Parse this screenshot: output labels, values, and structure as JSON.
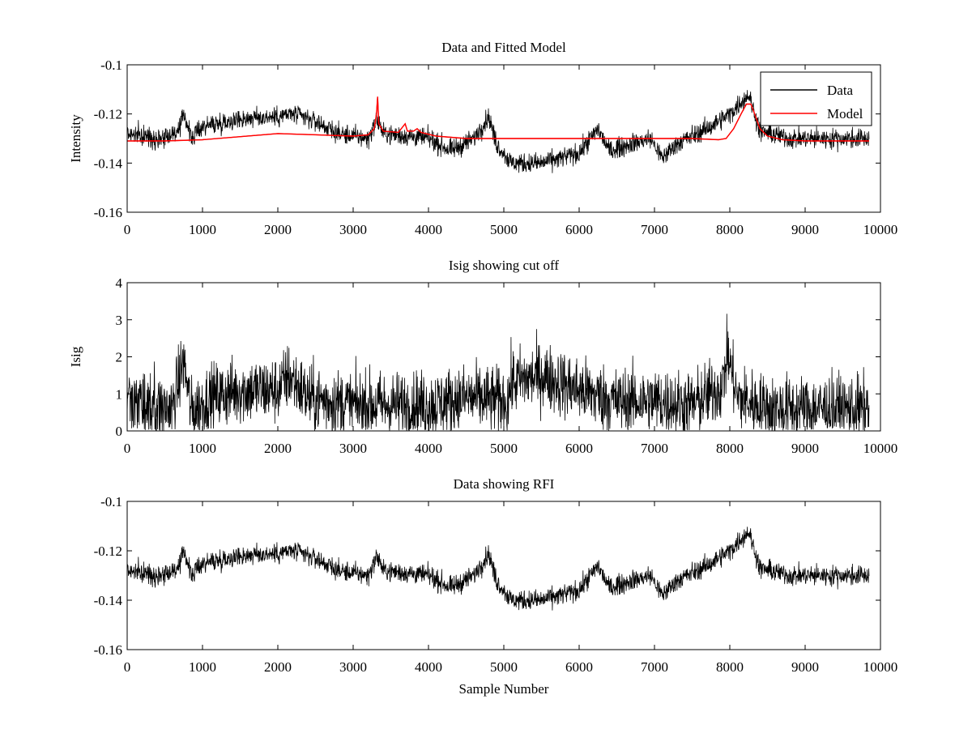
{
  "chart_data": [
    {
      "type": "line",
      "title": "Data and Fitted Model",
      "xlabel": "",
      "ylabel": "Intensity",
      "xlim": [
        0,
        10000
      ],
      "ylim": [
        -0.16,
        -0.1
      ],
      "xticks": [
        0,
        1000,
        2000,
        3000,
        4000,
        5000,
        6000,
        7000,
        8000,
        9000,
        10000
      ],
      "yticks": [
        -0.16,
        -0.14,
        -0.12,
        -0.1
      ],
      "xtick_labels": [
        "0",
        "1000",
        "2000",
        "3000",
        "4000",
        "5000",
        "6000",
        "7000",
        "8000",
        "9000",
        "10000"
      ],
      "ytick_labels": [
        "-0.16",
        "-0.14",
        "-0.12",
        "-0.1"
      ],
      "legend": {
        "placement": "top-right",
        "entries": [
          {
            "name": "Data",
            "color": "#000000"
          },
          {
            "name": "Model",
            "color": "#ff0000"
          }
        ]
      },
      "series": [
        {
          "name": "Data",
          "color": "#000000",
          "noise_amplitude": 0.004,
          "baseline": [
            [
              0,
              -0.128
            ],
            [
              400,
              -0.13
            ],
            [
              700,
              -0.127
            ],
            [
              750,
              -0.119
            ],
            [
              850,
              -0.13
            ],
            [
              1000,
              -0.125
            ],
            [
              1500,
              -0.122
            ],
            [
              2000,
              -0.121
            ],
            [
              2200,
              -0.12
            ],
            [
              2500,
              -0.123
            ],
            [
              2800,
              -0.128
            ],
            [
              3200,
              -0.13
            ],
            [
              3320,
              -0.122
            ],
            [
              3400,
              -0.128
            ],
            [
              4000,
              -0.13
            ],
            [
              4300,
              -0.135
            ],
            [
              4600,
              -0.13
            ],
            [
              4800,
              -0.121
            ],
            [
              4900,
              -0.132
            ],
            [
              5100,
              -0.14
            ],
            [
              5500,
              -0.14
            ],
            [
              6000,
              -0.136
            ],
            [
              6250,
              -0.126
            ],
            [
              6400,
              -0.135
            ],
            [
              6700,
              -0.132
            ],
            [
              6950,
              -0.13
            ],
            [
              7100,
              -0.138
            ],
            [
              7300,
              -0.132
            ],
            [
              7700,
              -0.126
            ],
            [
              8000,
              -0.12
            ],
            [
              8250,
              -0.112
            ],
            [
              8400,
              -0.127
            ],
            [
              8800,
              -0.13
            ],
            [
              9500,
              -0.13
            ],
            [
              9850,
              -0.13
            ]
          ]
        },
        {
          "name": "Model",
          "color": "#ff0000",
          "points": [
            [
              0,
              -0.131
            ],
            [
              500,
              -0.131
            ],
            [
              1000,
              -0.1305
            ],
            [
              2000,
              -0.128
            ],
            [
              2500,
              -0.1285
            ],
            [
              3000,
              -0.129
            ],
            [
              3200,
              -0.1285
            ],
            [
              3280,
              -0.126
            ],
            [
              3310,
              -0.12
            ],
            [
              3325,
              -0.113
            ],
            [
              3340,
              -0.124
            ],
            [
              3400,
              -0.127
            ],
            [
              3600,
              -0.1275
            ],
            [
              3690,
              -0.124
            ],
            [
              3720,
              -0.127
            ],
            [
              3800,
              -0.127
            ],
            [
              3850,
              -0.126
            ],
            [
              3900,
              -0.1275
            ],
            [
              4100,
              -0.129
            ],
            [
              4500,
              -0.13
            ],
            [
              6000,
              -0.13
            ],
            [
              7000,
              -0.13
            ],
            [
              7500,
              -0.13
            ],
            [
              7850,
              -0.1305
            ],
            [
              7950,
              -0.13
            ],
            [
              8050,
              -0.126
            ],
            [
              8150,
              -0.12
            ],
            [
              8220,
              -0.116
            ],
            [
              8280,
              -0.116
            ],
            [
              8330,
              -0.12
            ],
            [
              8400,
              -0.126
            ],
            [
              8500,
              -0.129
            ],
            [
              8700,
              -0.1305
            ],
            [
              9000,
              -0.131
            ],
            [
              9850,
              -0.131
            ]
          ]
        }
      ]
    },
    {
      "type": "line",
      "title": "Isig showing cut off",
      "xlabel": "",
      "ylabel": "Isig",
      "xlim": [
        0,
        10000
      ],
      "ylim": [
        0,
        4
      ],
      "xticks": [
        0,
        1000,
        2000,
        3000,
        4000,
        5000,
        6000,
        7000,
        8000,
        9000,
        10000
      ],
      "yticks": [
        0,
        1,
        2,
        3,
        4
      ],
      "xtick_labels": [
        "0",
        "1000",
        "2000",
        "3000",
        "4000",
        "5000",
        "6000",
        "7000",
        "8000",
        "9000",
        "10000"
      ],
      "ytick_labels": [
        "0",
        "1",
        "2",
        "3",
        "4"
      ],
      "series": [
        {
          "name": "Isig",
          "color": "#000000",
          "noise_amplitude": 0.9,
          "baseline": [
            [
              0,
              0.7
            ],
            [
              600,
              0.6
            ],
            [
              750,
              1.9
            ],
            [
              850,
              0.5
            ],
            [
              1100,
              0.9
            ],
            [
              1500,
              1.1
            ],
            [
              2000,
              1.1
            ],
            [
              2150,
              1.5
            ],
            [
              2400,
              0.9
            ],
            [
              3000,
              0.7
            ],
            [
              4000,
              0.7
            ],
            [
              4500,
              0.9
            ],
            [
              5050,
              0.8
            ],
            [
              5100,
              1.3
            ],
            [
              5500,
              1.5
            ],
            [
              6000,
              1.1
            ],
            [
              6500,
              0.8
            ],
            [
              7000,
              0.8
            ],
            [
              7500,
              0.7
            ],
            [
              7900,
              1.2
            ],
            [
              7970,
              2.1
            ],
            [
              8100,
              0.9
            ],
            [
              8500,
              0.6
            ],
            [
              9850,
              0.6
            ]
          ]
        }
      ]
    },
    {
      "type": "line",
      "title": "Data showing RFI",
      "xlabel": "Sample Number",
      "ylabel": "",
      "xlim": [
        0,
        10000
      ],
      "ylim": [
        -0.16,
        -0.1
      ],
      "xticks": [
        0,
        1000,
        2000,
        3000,
        4000,
        5000,
        6000,
        7000,
        8000,
        9000,
        10000
      ],
      "yticks": [
        -0.16,
        -0.14,
        -0.12,
        -0.1
      ],
      "xtick_labels": [
        "0",
        "1000",
        "2000",
        "3000",
        "4000",
        "5000",
        "6000",
        "7000",
        "8000",
        "9000",
        "10000"
      ],
      "ytick_labels": [
        "-0.16",
        "-0.14",
        "-0.12",
        "-0.1"
      ],
      "series": [
        {
          "name": "Data",
          "color": "#000000",
          "noise_amplitude": 0.004,
          "baseline": [
            [
              0,
              -0.128
            ],
            [
              400,
              -0.13
            ],
            [
              700,
              -0.127
            ],
            [
              750,
              -0.119
            ],
            [
              850,
              -0.13
            ],
            [
              1000,
              -0.125
            ],
            [
              1500,
              -0.122
            ],
            [
              2000,
              -0.121
            ],
            [
              2200,
              -0.12
            ],
            [
              2500,
              -0.123
            ],
            [
              2800,
              -0.128
            ],
            [
              3200,
              -0.13
            ],
            [
              3320,
              -0.122
            ],
            [
              3400,
              -0.128
            ],
            [
              4000,
              -0.13
            ],
            [
              4300,
              -0.135
            ],
            [
              4600,
              -0.13
            ],
            [
              4800,
              -0.121
            ],
            [
              4900,
              -0.132
            ],
            [
              5100,
              -0.14
            ],
            [
              5500,
              -0.14
            ],
            [
              6000,
              -0.136
            ],
            [
              6250,
              -0.126
            ],
            [
              6400,
              -0.135
            ],
            [
              6700,
              -0.132
            ],
            [
              6950,
              -0.13
            ],
            [
              7100,
              -0.138
            ],
            [
              7300,
              -0.132
            ],
            [
              7700,
              -0.126
            ],
            [
              8000,
              -0.12
            ],
            [
              8250,
              -0.112
            ],
            [
              8400,
              -0.127
            ],
            [
              8800,
              -0.13
            ],
            [
              9500,
              -0.13
            ],
            [
              9850,
              -0.13
            ]
          ]
        }
      ]
    }
  ]
}
